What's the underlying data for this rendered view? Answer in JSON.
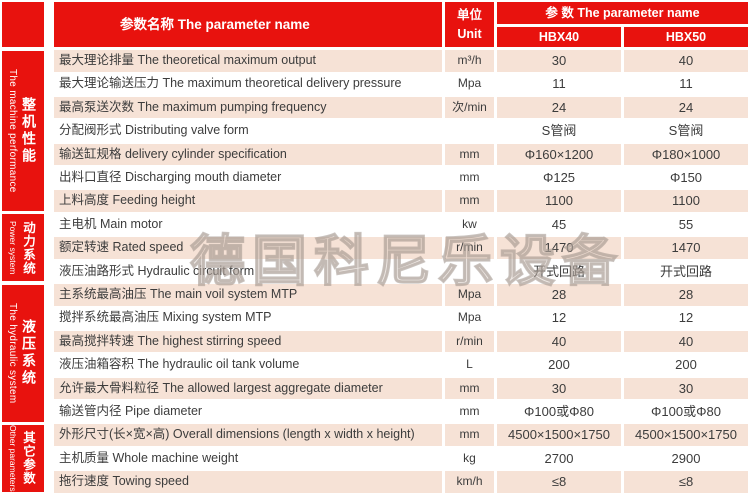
{
  "header": {
    "name_col": "参数名称  The parameter name",
    "unit_cn": "单位",
    "unit_en": "Unit",
    "params_col": "参 数  The parameter name",
    "models": [
      "HBX40",
      "HBX50"
    ]
  },
  "sections": [
    {
      "cn": "整机性能",
      "en": "The machine performance",
      "rows": 7
    },
    {
      "cn": "动力系统",
      "en": "Power system",
      "rows": 3
    },
    {
      "cn": "液压系统",
      "en": "The hydraulic system",
      "rows": 6
    },
    {
      "cn": "其它参数",
      "en": "Other parameters",
      "rows": 3
    }
  ],
  "rows": [
    {
      "name": "最大理论排量 The theoretical maximum output",
      "unit": "m³/h",
      "hbx40": "30",
      "hbx50": "40"
    },
    {
      "name": "最大理论输送压力  The maximum theoretical delivery pressure",
      "unit": "Mpa",
      "hbx40": "11",
      "hbx50": "11"
    },
    {
      "name": "最高泵送次数 The maximum pumping frequency",
      "unit": "次/min",
      "hbx40": "24",
      "hbx50": "24"
    },
    {
      "name": "分配阀形式 Distributing valve form",
      "unit": "",
      "hbx40": "S管阀",
      "hbx50": "S管阀"
    },
    {
      "name": "输送缸规格 delivery cylinder specification",
      "unit": "mm",
      "hbx40": "Φ160×1200",
      "hbx50": "Φ180×1000"
    },
    {
      "name": "出料口直径 Discharging mouth diameter",
      "unit": "mm",
      "hbx40": "Φ125",
      "hbx50": "Φ150"
    },
    {
      "name": "上料高度 Feeding height",
      "unit": "mm",
      "hbx40": "1100",
      "hbx50": "1100"
    },
    {
      "name": "主电机 Main motor",
      "unit": "kw",
      "hbx40": "45",
      "hbx50": "55"
    },
    {
      "name": "额定转速 Rated speed",
      "unit": "r/min",
      "hbx40": "1470",
      "hbx50": "1470"
    },
    {
      "name": "液压油路形式 Hydraulic circuit form",
      "unit": "",
      "hbx40": "开式回路",
      "hbx50": "开式回路"
    },
    {
      "name": "主系统最高油压 The main voil system MTP",
      "unit": "Mpa",
      "hbx40": "28",
      "hbx50": "28"
    },
    {
      "name": "搅拌系统最高油压 Mixing system MTP",
      "unit": "Mpa",
      "hbx40": "12",
      "hbx50": "12"
    },
    {
      "name": "最高搅拌转速 The highest stirring speed",
      "unit": "r/min",
      "hbx40": "40",
      "hbx50": "40"
    },
    {
      "name": "液压油箱容积 The hydraulic oil tank volume",
      "unit": "L",
      "hbx40": "200",
      "hbx50": "200"
    },
    {
      "name": "允许最大骨料粒径 The allowed largest aggregate diameter",
      "unit": "mm",
      "hbx40": "30",
      "hbx50": "30"
    },
    {
      "name": "输送管内径 Pipe diameter",
      "unit": "mm",
      "hbx40": "Φ100或Φ80",
      "hbx50": "Φ100或Φ80"
    },
    {
      "name": "外形尺寸(长×宽×高) Overall dimensions (length x width x height)",
      "unit": "mm",
      "hbx40": "4500×1500×1750",
      "hbx50": "4500×1500×1750"
    },
    {
      "name": "主机质量 Whole machine weight",
      "unit": "kg",
      "hbx40": "2700",
      "hbx50": "2900"
    },
    {
      "name": "拖行速度 Towing speed",
      "unit": "km/h",
      "hbx40": "≤8",
      "hbx50": "≤8"
    }
  ],
  "watermark": "德国科尼乐设备",
  "colors": {
    "red": "#e8120e",
    "stripe": "#f6e2d6",
    "text": "#3c3c3c"
  }
}
